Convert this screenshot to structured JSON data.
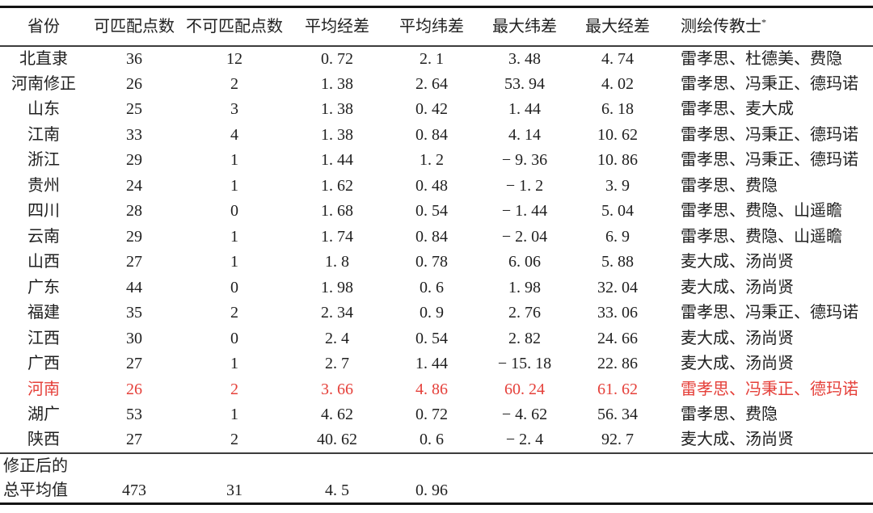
{
  "table": {
    "colors": {
      "text": "#1f1f1f",
      "highlight_red": "#e5403a",
      "rule_heavy": "#141414",
      "rule_light": "#3c3c3c"
    },
    "columns": [
      {
        "key": "province",
        "label": "省份"
      },
      {
        "key": "matchable",
        "label": "可匹配点数"
      },
      {
        "key": "unmatchable",
        "label": "不可匹配点数"
      },
      {
        "key": "avg_lon",
        "label": "平均经差"
      },
      {
        "key": "avg_lat",
        "label": "平均纬差"
      },
      {
        "key": "max_lat",
        "label": "最大纬差"
      },
      {
        "key": "max_lon",
        "label": "最大经差"
      },
      {
        "key": "missionaries",
        "label": "测绘传教士",
        "note": "*"
      }
    ],
    "rows": [
      {
        "province": "北直隶",
        "matchable": "36",
        "unmatchable": "12",
        "avg_lon": "0. 72",
        "avg_lat": "2. 1",
        "max_lat": "3. 48",
        "max_lon": "4. 74",
        "missionaries": "雷孝思、杜德美、费隐",
        "highlight": false
      },
      {
        "province": "河南修正",
        "matchable": "26",
        "unmatchable": "2",
        "avg_lon": "1. 38",
        "avg_lat": "2. 64",
        "max_lat": "53. 94",
        "max_lon": "4. 02",
        "missionaries": "雷孝思、冯秉正、德玛诺",
        "highlight": false
      },
      {
        "province": "山东",
        "matchable": "25",
        "unmatchable": "3",
        "avg_lon": "1. 38",
        "avg_lat": "0. 42",
        "max_lat": "1. 44",
        "max_lon": "6. 18",
        "missionaries": "雷孝思、麦大成",
        "highlight": false
      },
      {
        "province": "江南",
        "matchable": "33",
        "unmatchable": "4",
        "avg_lon": "1. 38",
        "avg_lat": "0. 84",
        "max_lat": "4. 14",
        "max_lon": "10. 62",
        "missionaries": "雷孝思、冯秉正、德玛诺",
        "highlight": false
      },
      {
        "province": "浙江",
        "matchable": "29",
        "unmatchable": "1",
        "avg_lon": "1. 44",
        "avg_lat": "1. 2",
        "max_lat": "− 9. 36",
        "max_lon": "10. 86",
        "missionaries": "雷孝思、冯秉正、德玛诺",
        "highlight": false
      },
      {
        "province": "贵州",
        "matchable": "24",
        "unmatchable": "1",
        "avg_lon": "1. 62",
        "avg_lat": "0. 48",
        "max_lat": "− 1. 2",
        "max_lon": "3. 9",
        "missionaries": "雷孝思、费隐",
        "highlight": false
      },
      {
        "province": "四川",
        "matchable": "28",
        "unmatchable": "0",
        "avg_lon": "1. 68",
        "avg_lat": "0. 54",
        "max_lat": "− 1. 44",
        "max_lon": "5. 04",
        "missionaries": "雷孝思、费隐、山遥瞻",
        "highlight": false
      },
      {
        "province": "云南",
        "matchable": "29",
        "unmatchable": "1",
        "avg_lon": "1. 74",
        "avg_lat": "0. 84",
        "max_lat": "− 2. 04",
        "max_lon": "6. 9",
        "missionaries": "雷孝思、费隐、山遥瞻",
        "highlight": false
      },
      {
        "province": "山西",
        "matchable": "27",
        "unmatchable": "1",
        "avg_lon": "1. 8",
        "avg_lat": "0. 78",
        "max_lat": "6. 06",
        "max_lon": "5. 88",
        "missionaries": "麦大成、汤尚贤",
        "highlight": false
      },
      {
        "province": "广东",
        "matchable": "44",
        "unmatchable": "0",
        "avg_lon": "1. 98",
        "avg_lat": "0. 6",
        "max_lat": "1. 98",
        "max_lon": "32. 04",
        "missionaries": "麦大成、汤尚贤",
        "highlight": false
      },
      {
        "province": "福建",
        "matchable": "35",
        "unmatchable": "2",
        "avg_lon": "2. 34",
        "avg_lat": "0. 9",
        "max_lat": "2. 76",
        "max_lon": "33. 06",
        "missionaries": "雷孝思、冯秉正、德玛诺",
        "highlight": false
      },
      {
        "province": "江西",
        "matchable": "30",
        "unmatchable": "0",
        "avg_lon": "2. 4",
        "avg_lat": "0. 54",
        "max_lat": "2. 82",
        "max_lon": "24. 66",
        "missionaries": "麦大成、汤尚贤",
        "highlight": false
      },
      {
        "province": "广西",
        "matchable": "27",
        "unmatchable": "1",
        "avg_lon": "2. 7",
        "avg_lat": "1. 44",
        "max_lat": "− 15. 18",
        "max_lon": "22. 86",
        "missionaries": "麦大成、汤尚贤",
        "highlight": false
      },
      {
        "province": "河南",
        "matchable": "26",
        "unmatchable": "2",
        "avg_lon": "3. 66",
        "avg_lat": "4. 86",
        "max_lat": "60. 24",
        "max_lon": "61. 62",
        "missionaries": "雷孝思、冯秉正、德玛诺",
        "highlight": true
      },
      {
        "province": "湖广",
        "matchable": "53",
        "unmatchable": "1",
        "avg_lon": "4. 62",
        "avg_lat": "0. 72",
        "max_lat": "− 4. 62",
        "max_lon": "56. 34",
        "missionaries": "雷孝思、费隐",
        "highlight": false
      },
      {
        "province": "陕西",
        "matchable": "27",
        "unmatchable": "2",
        "avg_lon": "40. 62",
        "avg_lat": "0. 6",
        "max_lat": "− 2. 4",
        "max_lon": "92. 7",
        "missionaries": "麦大成、汤尚贤",
        "highlight": false
      }
    ],
    "summary": {
      "label_line1": "修正后的",
      "label_line2": "总平均值",
      "matchable": "473",
      "unmatchable": "31",
      "avg_lon": "4. 5",
      "avg_lat": "0. 96",
      "max_lat": "",
      "max_lon": "",
      "missionaries": ""
    }
  }
}
